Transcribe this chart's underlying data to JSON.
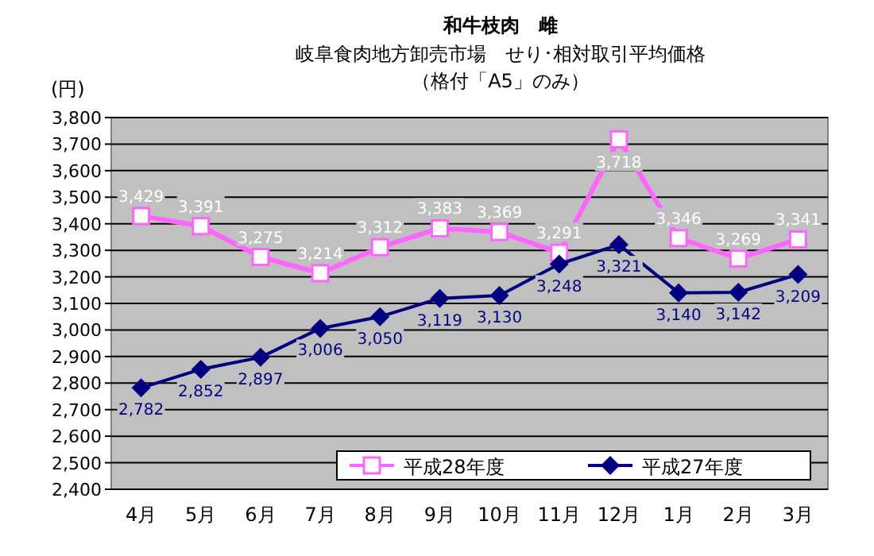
{
  "chart_data": {
    "type": "line",
    "title": "和牛枝肉　雌",
    "subtitle": "岐阜食肉地方卸売市場　せり･相対取引平均価格",
    "annotations": [
      "（格付「A5」のみ）"
    ],
    "ylabel": "(円)",
    "categories": [
      "4月",
      "5月",
      "6月",
      "7月",
      "8月",
      "9月",
      "10月",
      "11月",
      "12月",
      "1月",
      "2月",
      "3月"
    ],
    "series": [
      {
        "name": "平成28年度",
        "color": "#ff66ff",
        "marker": "square",
        "values": [
          3429,
          3391,
          3275,
          3214,
          3312,
          3383,
          3369,
          3291,
          3718,
          3346,
          3269,
          3341
        ],
        "value_labels": [
          "3,429",
          "3,391",
          "3,275",
          "3,214",
          "3,312",
          "3,383",
          "3,369",
          "3,291",
          "3,718",
          "3,346",
          "3,269",
          "3,341"
        ]
      },
      {
        "name": "平成27年度",
        "color": "#000080",
        "marker": "diamond",
        "values": [
          2782,
          2852,
          2897,
          3006,
          3050,
          3119,
          3130,
          3248,
          3321,
          3140,
          3142,
          3209
        ],
        "value_labels": [
          "2,782",
          "2,852",
          "2,897",
          "3,006",
          "3,050",
          "3,119",
          "3,130",
          "3,248",
          "3,321",
          "3,140",
          "3,142",
          "3,209"
        ]
      }
    ],
    "ylim": [
      2400,
      3800
    ],
    "yticks": [
      {
        "value": 2400,
        "label": "2,400"
      },
      {
        "value": 2500,
        "label": "2,500"
      },
      {
        "value": 2600,
        "label": "2,600"
      },
      {
        "value": 2700,
        "label": "2,700"
      },
      {
        "value": 2800,
        "label": "2,800"
      },
      {
        "value": 2900,
        "label": "2,900"
      },
      {
        "value": 3000,
        "label": "3,000"
      },
      {
        "value": 3100,
        "label": "3,100"
      },
      {
        "value": 3200,
        "label": "3,200"
      },
      {
        "value": 3300,
        "label": "3,300"
      },
      {
        "value": 3400,
        "label": "3,400"
      },
      {
        "value": 3500,
        "label": "3,500"
      },
      {
        "value": 3600,
        "label": "3,600"
      },
      {
        "value": 3700,
        "label": "3,700"
      },
      {
        "value": 3800,
        "label": "3,800"
      }
    ],
    "grid": "y",
    "legend": "bottom right"
  }
}
